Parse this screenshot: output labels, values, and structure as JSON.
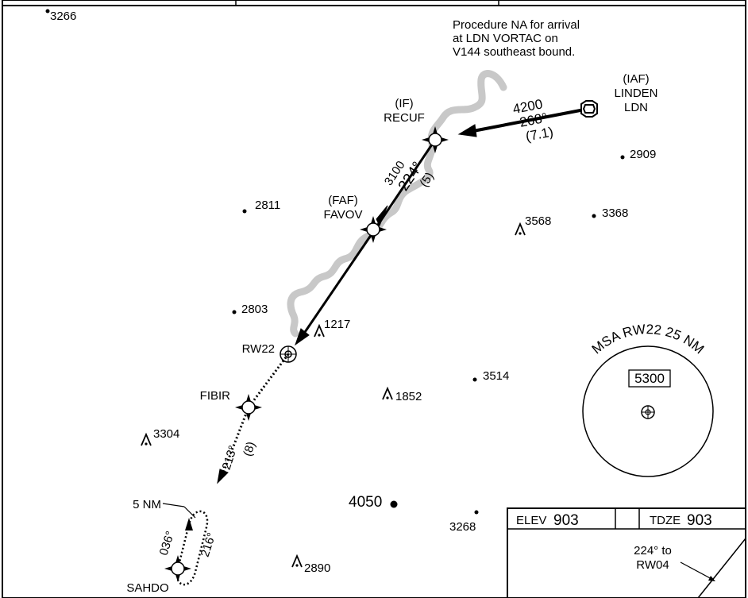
{
  "procedure_note": [
    "Procedure NA for arrival",
    "at LDN VORTAC on",
    "V144 southeast bound."
  ],
  "fixes": {
    "iaf": {
      "role": "(IAF)",
      "name": "LINDEN",
      "ident": "LDN"
    },
    "if": {
      "role": "(IF)",
      "name": "RECUF"
    },
    "faf": {
      "role": "(FAF)",
      "name": "FAVOV"
    },
    "rw": {
      "name": "RW22"
    },
    "fibir": {
      "name": "FIBIR"
    },
    "sahdo": {
      "name": "SAHDO"
    }
  },
  "legs": {
    "ldn_recuf": {
      "altitude": "4200",
      "course": "268°",
      "distance": "(7.1)"
    },
    "recuf_rw": {
      "altitude": "3100",
      "course": "224°",
      "distance": "(5)"
    },
    "missed": {
      "course": "213°",
      "distance": "(8)"
    },
    "hold": {
      "length": "5 NM",
      "inbound": "036°",
      "outbound": "216°"
    }
  },
  "spot_elevations": [
    "3266",
    "2909",
    "3368",
    "2811",
    "2803",
    "3514",
    "3268"
  ],
  "obstacles": [
    "3568",
    "1217",
    "1852",
    "3304",
    "2890"
  ],
  "highest_terrain": "4050",
  "msa": {
    "title": "MSA RW22 25 NM",
    "altitude": "5300"
  },
  "info_box": {
    "elev_label": "ELEV",
    "elev_value": "903",
    "tdze_label": "TDZE",
    "tdze_value": "903",
    "note_line1": "224° to",
    "note_line2": "RW04"
  },
  "colors": {
    "ink": "#000000",
    "river": "#c8c8c8",
    "paper": "#ffffff"
  }
}
